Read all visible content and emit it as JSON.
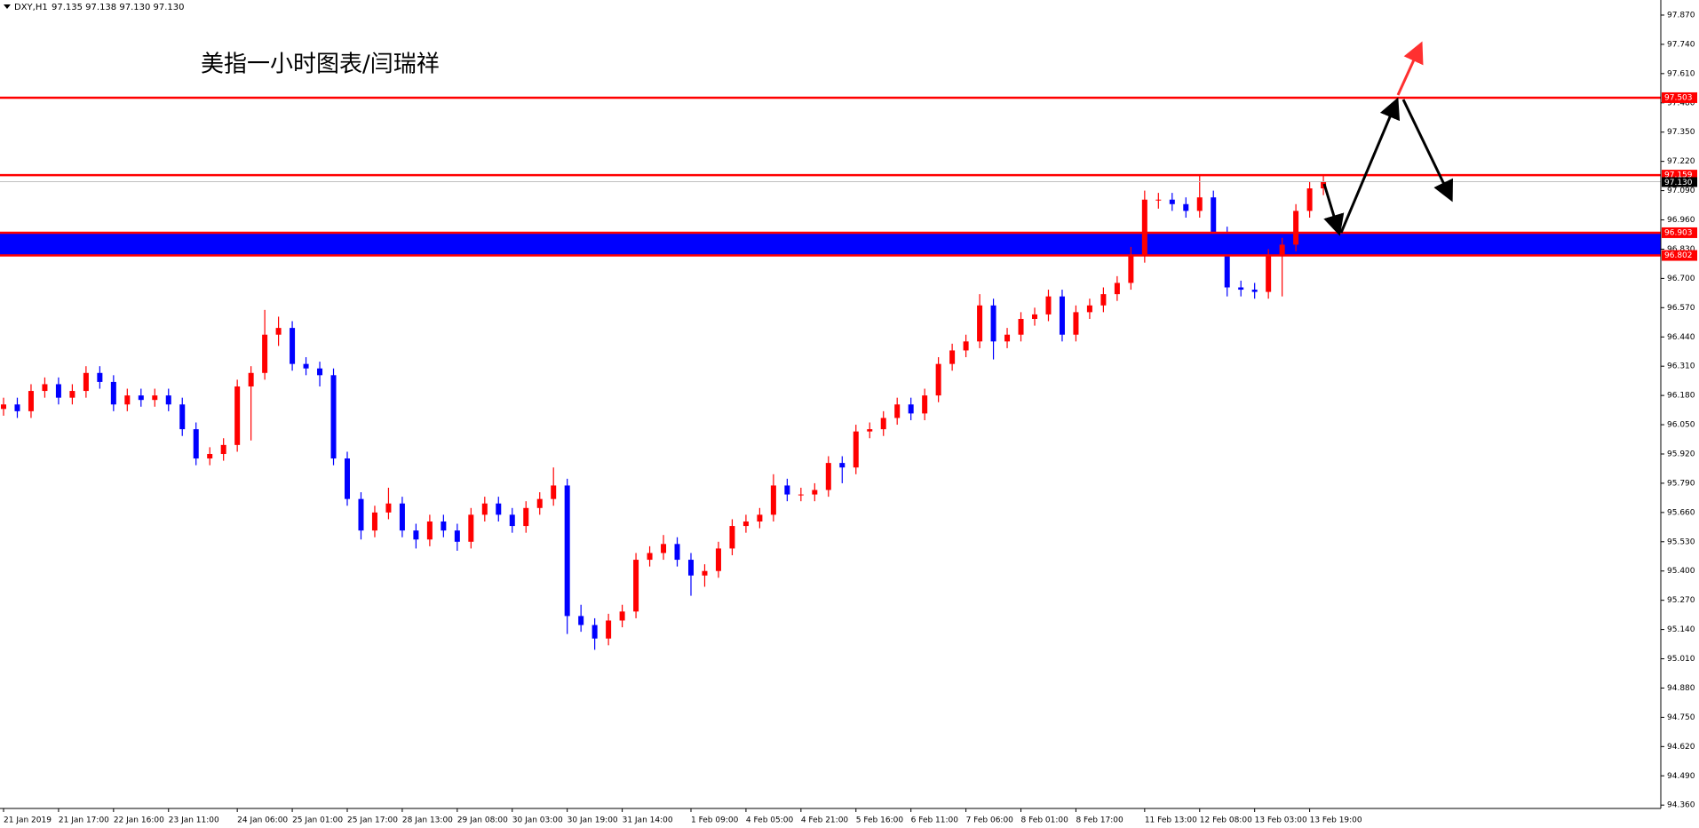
{
  "header": {
    "symbol": "DXY,H1",
    "quote": "97.135 97.138 97.130 97.130"
  },
  "chart_data": {
    "type": "candlestick",
    "title": "美指一小时图表/闫瑞祥",
    "up_color": "#ff0000",
    "down_color": "#0000ff",
    "band_color": "#0000ff",
    "level_color": "#ff0000",
    "ylim": [
      94.345,
      97.937
    ],
    "yticks": [
      {
        "value": 97.87,
        "label": "97.870"
      },
      {
        "value": 97.74,
        "label": "97.740"
      },
      {
        "value": 97.61,
        "label": "97.610"
      },
      {
        "value": 97.48,
        "label": "97.480"
      },
      {
        "value": 97.35,
        "label": "97.350"
      },
      {
        "value": 97.22,
        "label": "97.220"
      },
      {
        "value": 97.09,
        "label": "97.090"
      },
      {
        "value": 96.96,
        "label": "96.960"
      },
      {
        "value": 96.83,
        "label": "96.830"
      },
      {
        "value": 96.7,
        "label": "96.700"
      },
      {
        "value": 96.57,
        "label": "96.570"
      },
      {
        "value": 96.44,
        "label": "96.440"
      },
      {
        "value": 96.31,
        "label": "96.310"
      },
      {
        "value": 96.18,
        "label": "96.180"
      },
      {
        "value": 96.05,
        "label": "96.050"
      },
      {
        "value": 95.92,
        "label": "95.920"
      },
      {
        "value": 95.79,
        "label": "95.790"
      },
      {
        "value": 95.66,
        "label": "95.660"
      },
      {
        "value": 95.53,
        "label": "95.530"
      },
      {
        "value": 95.4,
        "label": "95.400"
      },
      {
        "value": 95.27,
        "label": "95.270"
      },
      {
        "value": 95.14,
        "label": "95.140"
      },
      {
        "value": 95.01,
        "label": "95.010"
      },
      {
        "value": 94.88,
        "label": "94.880"
      },
      {
        "value": 94.75,
        "label": "94.750"
      },
      {
        "value": 94.62,
        "label": "94.620"
      },
      {
        "value": 94.49,
        "label": "94.490"
      },
      {
        "value": 94.36,
        "label": "94.360"
      }
    ],
    "levels": [
      97.503,
      97.159,
      96.903,
      96.802
    ],
    "current": {
      "value": 97.13,
      "label": "97.130"
    },
    "categories": [
      "21 Jan 2019",
      null,
      null,
      null,
      "21 Jan 17:00",
      null,
      null,
      null,
      "22 Jan 16:00",
      null,
      null,
      null,
      "23 Jan 11:00",
      null,
      null,
      null,
      null,
      "24 Jan 06:00",
      null,
      null,
      null,
      "25 Jan 01:00",
      null,
      null,
      null,
      "25 Jan 17:00",
      null,
      null,
      null,
      "28 Jan 13:00",
      null,
      null,
      null,
      "29 Jan 08:00",
      null,
      null,
      null,
      "30 Jan 03:00",
      null,
      null,
      null,
      "30 Jan 19:00",
      null,
      null,
      null,
      "31 Jan 14:00",
      null,
      null,
      null,
      null,
      "1 Feb 09:00",
      null,
      null,
      null,
      "4 Feb 05:00",
      null,
      null,
      null,
      "4 Feb 21:00",
      null,
      null,
      null,
      "5 Feb 16:00",
      null,
      null,
      null,
      "6 Feb 11:00",
      null,
      null,
      null,
      "7 Feb 06:00",
      null,
      null,
      null,
      "8 Feb 01:00",
      null,
      null,
      null,
      "8 Feb 17:00",
      null,
      null,
      null,
      null,
      "11 Feb 13:00",
      null,
      null,
      null,
      "12 Feb 08:00",
      null,
      null,
      null,
      "13 Feb 03:00",
      null,
      null,
      null,
      "13 Feb 19:00",
      null
    ],
    "open": [
      96.12,
      96.14,
      96.11,
      96.2,
      96.23,
      96.17,
      96.2,
      96.28,
      96.24,
      96.14,
      96.18,
      96.16,
      96.18,
      96.14,
      96.03,
      95.9,
      95.92,
      95.96,
      96.22,
      96.28,
      96.45,
      96.48,
      96.32,
      96.3,
      96.27,
      95.9,
      95.72,
      95.58,
      95.66,
      95.7,
      95.58,
      95.54,
      95.62,
      95.58,
      95.53,
      95.65,
      95.7,
      95.65,
      95.6,
      95.68,
      95.72,
      95.78,
      95.2,
      95.16,
      95.1,
      95.18,
      95.22,
      95.45,
      95.48,
      95.52,
      95.45,
      95.38,
      95.4,
      95.5,
      95.6,
      95.62,
      95.65,
      95.78,
      95.74,
      95.74,
      95.76,
      95.88,
      95.86,
      96.02,
      96.03,
      96.08,
      96.14,
      96.1,
      96.18,
      96.32,
      96.38,
      96.42,
      96.58,
      96.42,
      96.45,
      96.52,
      96.54,
      96.62,
      96.45,
      96.55,
      96.58,
      96.63,
      96.68,
      96.8,
      97.05,
      97.05,
      97.03,
      97.0,
      97.06,
      96.9,
      96.66,
      96.65,
      96.64,
      96.8,
      96.85,
      97.0,
      97.1
    ],
    "high": [
      96.17,
      96.17,
      96.23,
      96.26,
      96.26,
      96.23,
      96.31,
      96.31,
      96.27,
      96.21,
      96.21,
      96.21,
      96.21,
      96.17,
      96.06,
      95.95,
      95.99,
      96.25,
      96.31,
      96.56,
      96.53,
      96.51,
      96.35,
      96.33,
      96.3,
      95.93,
      95.75,
      95.69,
      95.77,
      95.73,
      95.61,
      95.65,
      95.65,
      95.61,
      95.68,
      95.73,
      95.73,
      95.68,
      95.71,
      95.75,
      95.86,
      95.81,
      95.25,
      95.19,
      95.21,
      95.25,
      95.48,
      95.51,
      95.56,
      95.55,
      95.48,
      95.43,
      95.53,
      95.63,
      95.65,
      95.68,
      95.83,
      95.81,
      95.77,
      95.79,
      95.91,
      95.91,
      96.05,
      96.06,
      96.11,
      96.17,
      96.17,
      96.21,
      96.35,
      96.41,
      96.45,
      96.63,
      96.61,
      96.48,
      96.55,
      96.57,
      96.65,
      96.65,
      96.58,
      96.61,
      96.66,
      96.71,
      96.84,
      97.09,
      97.08,
      97.08,
      97.06,
      97.16,
      97.09,
      96.93,
      96.69,
      96.68,
      96.83,
      96.88,
      97.03,
      97.13,
      97.16
    ],
    "low": [
      96.09,
      96.08,
      96.08,
      96.17,
      96.14,
      96.14,
      96.17,
      96.21,
      96.11,
      96.11,
      96.13,
      96.13,
      96.11,
      96.0,
      95.87,
      95.87,
      95.89,
      95.93,
      95.98,
      96.25,
      96.4,
      96.29,
      96.27,
      96.22,
      95.87,
      95.69,
      95.54,
      95.55,
      95.63,
      95.55,
      95.5,
      95.51,
      95.55,
      95.49,
      95.5,
      95.62,
      95.62,
      95.57,
      95.57,
      95.65,
      95.69,
      95.12,
      95.13,
      95.05,
      95.07,
      95.15,
      95.19,
      95.42,
      95.45,
      95.42,
      95.29,
      95.33,
      95.37,
      95.47,
      95.57,
      95.59,
      95.62,
      95.71,
      95.71,
      95.71,
      95.73,
      95.79,
      95.83,
      95.99,
      96.0,
      96.05,
      96.07,
      96.07,
      96.15,
      96.29,
      96.35,
      96.39,
      96.34,
      96.39,
      96.42,
      96.49,
      96.51,
      96.42,
      96.42,
      96.52,
      96.55,
      96.6,
      96.65,
      96.77,
      97.01,
      97.0,
      96.97,
      96.97,
      96.87,
      96.62,
      96.62,
      96.61,
      96.61,
      96.62,
      96.82,
      96.97,
      97.07
    ],
    "close": [
      96.14,
      96.11,
      96.2,
      96.23,
      96.17,
      96.2,
      96.28,
      96.24,
      96.14,
      96.18,
      96.16,
      96.18,
      96.14,
      96.03,
      95.9,
      95.92,
      95.96,
      96.22,
      96.28,
      96.45,
      96.48,
      96.32,
      96.3,
      96.27,
      95.9,
      95.72,
      95.58,
      95.66,
      95.7,
      95.58,
      95.54,
      95.62,
      95.58,
      95.53,
      95.65,
      95.7,
      95.65,
      95.6,
      95.68,
      95.72,
      95.78,
      95.2,
      95.16,
      95.1,
      95.18,
      95.22,
      95.45,
      95.48,
      95.52,
      95.45,
      95.38,
      95.4,
      95.5,
      95.6,
      95.62,
      95.65,
      95.78,
      95.74,
      95.74,
      95.76,
      95.88,
      95.86,
      96.02,
      96.03,
      96.08,
      96.14,
      96.1,
      96.18,
      96.32,
      96.38,
      96.42,
      96.58,
      96.42,
      96.45,
      96.52,
      96.54,
      96.62,
      96.45,
      96.55,
      96.58,
      96.63,
      96.68,
      96.8,
      97.05,
      97.05,
      97.03,
      97.0,
      97.06,
      96.9,
      96.66,
      96.65,
      96.64,
      96.8,
      96.85,
      97.0,
      97.1,
      97.13
    ]
  }
}
